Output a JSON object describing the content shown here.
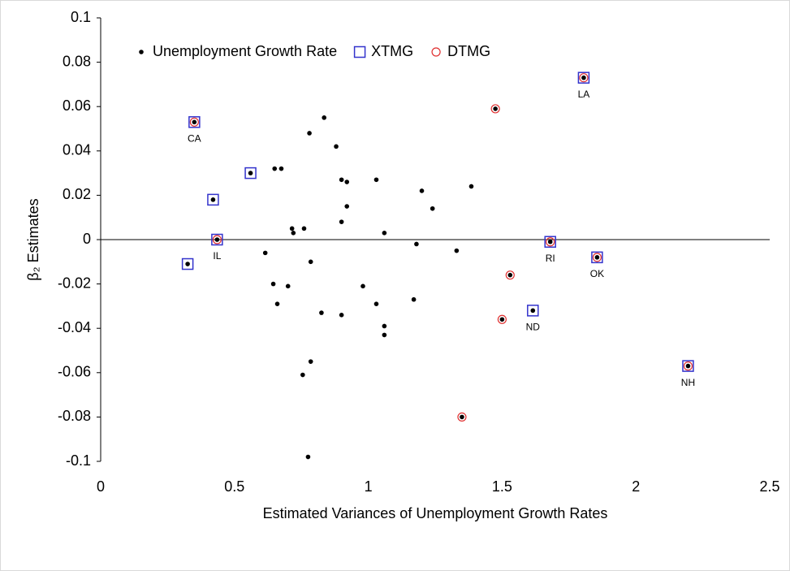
{
  "chart_data": {
    "type": "scatter",
    "xlabel": "Estimated Variances of Unemployment Growth Rates",
    "ylabel": "β₂ Estimates",
    "xlim": [
      0,
      2.5
    ],
    "xticks": [
      0,
      0.5,
      1,
      1.5,
      2,
      2.5
    ],
    "ylim": [
      -0.1,
      0.1
    ],
    "yticks": [
      -0.1,
      -0.08,
      -0.06,
      -0.04,
      -0.02,
      0,
      0.02,
      0.04,
      0.06,
      0.08,
      0.1
    ],
    "legend": "top-left",
    "series": [
      {
        "name": "Unemployment Growth Rate",
        "color": "#000000",
        "marker": "dot",
        "x": [
          0.35,
          0.42,
          0.56,
          0.325,
          0.435,
          0.835,
          0.78,
          0.88,
          0.65,
          0.675,
          0.9,
          0.92,
          1.03,
          1.2,
          1.385,
          1.24,
          0.92,
          0.9,
          0.715,
          0.72,
          0.76,
          1.06,
          1.18,
          1.33,
          0.615,
          0.785,
          0.645,
          0.7,
          0.98,
          0.66,
          1.03,
          1.17,
          0.825,
          0.9,
          1.06,
          1.06,
          0.785,
          0.755,
          0.775,
          1.805,
          1.475,
          1.68,
          1.855,
          1.53,
          1.5,
          1.615,
          1.35,
          2.195
        ],
        "y": [
          0.053,
          0.018,
          0.03,
          -0.011,
          0,
          0.055,
          0.048,
          0.042,
          0.032,
          0.032,
          0.027,
          0.026,
          0.027,
          0.022,
          0.024,
          0.014,
          0.015,
          0.008,
          0.005,
          0.003,
          0.005,
          0.003,
          -0.002,
          -0.005,
          -0.006,
          -0.01,
          -0.02,
          -0.021,
          -0.021,
          -0.029,
          -0.029,
          -0.027,
          -0.033,
          -0.034,
          -0.039,
          -0.043,
          -0.055,
          -0.061,
          -0.098,
          0.073,
          0.059,
          -0.001,
          -0.008,
          -0.016,
          -0.036,
          -0.032,
          -0.08,
          -0.057
        ]
      },
      {
        "name": "XTMG",
        "color": "#3333cc",
        "marker": "square",
        "x": [
          0.35,
          0.42,
          0.56,
          0.325,
          0.435,
          1.805,
          1.68,
          1.855,
          1.615,
          2.195
        ],
        "y": [
          0.053,
          0.018,
          0.03,
          -0.011,
          0,
          0.073,
          -0.001,
          -0.008,
          -0.032,
          -0.057
        ],
        "labels": [
          "CA",
          null,
          null,
          null,
          "IL",
          "LA",
          "RI",
          "OK",
          "ND",
          "NH"
        ]
      },
      {
        "name": "DTMG",
        "color": "#e03030",
        "marker": "circle",
        "x": [
          0.35,
          0.435,
          1.805,
          1.68,
          1.855,
          2.195,
          1.475,
          1.53,
          1.5,
          1.35
        ],
        "y": [
          0.053,
          0,
          0.073,
          -0.001,
          -0.008,
          -0.057,
          0.059,
          -0.016,
          -0.036,
          -0.08
        ]
      }
    ]
  }
}
